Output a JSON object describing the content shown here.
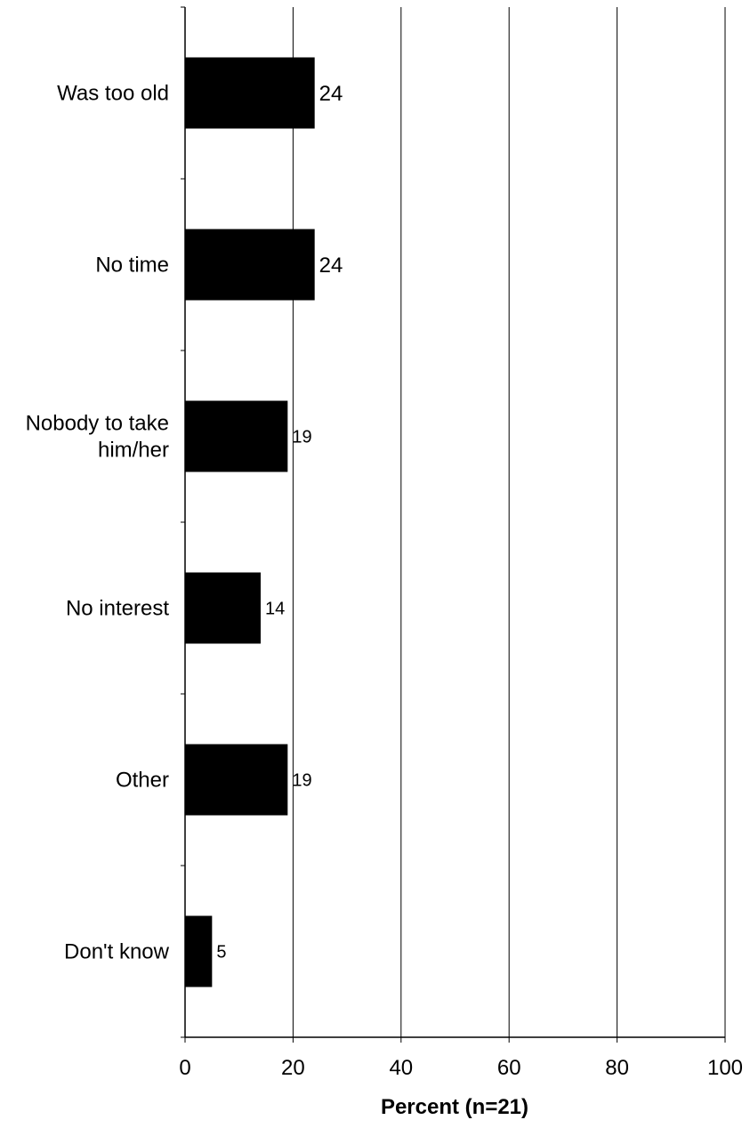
{
  "chart_data": {
    "type": "bar",
    "orientation": "horizontal",
    "categories": [
      "Was too old",
      "No time",
      "Nobody to take him/her",
      "No interest",
      "Other",
      "Don't know"
    ],
    "category_label_lines": [
      [
        "Was too old"
      ],
      [
        "No time"
      ],
      [
        "Nobody to take",
        "him/her"
      ],
      [
        "No interest"
      ],
      [
        "Other"
      ],
      [
        "Don't know"
      ]
    ],
    "values": [
      24,
      24,
      19,
      14,
      19,
      5
    ],
    "data_labels": [
      "24",
      "24",
      "19",
      "14",
      "19",
      "5"
    ],
    "xlabel": "Percent (n=21)",
    "xlim": [
      0,
      100
    ],
    "xticks": [
      0,
      20,
      40,
      60,
      80,
      100
    ],
    "xtick_labels": [
      "0",
      "20",
      "40",
      "60",
      "80",
      "100"
    ],
    "grid": "vertical",
    "legend": "none",
    "bar_color": "#000000"
  }
}
